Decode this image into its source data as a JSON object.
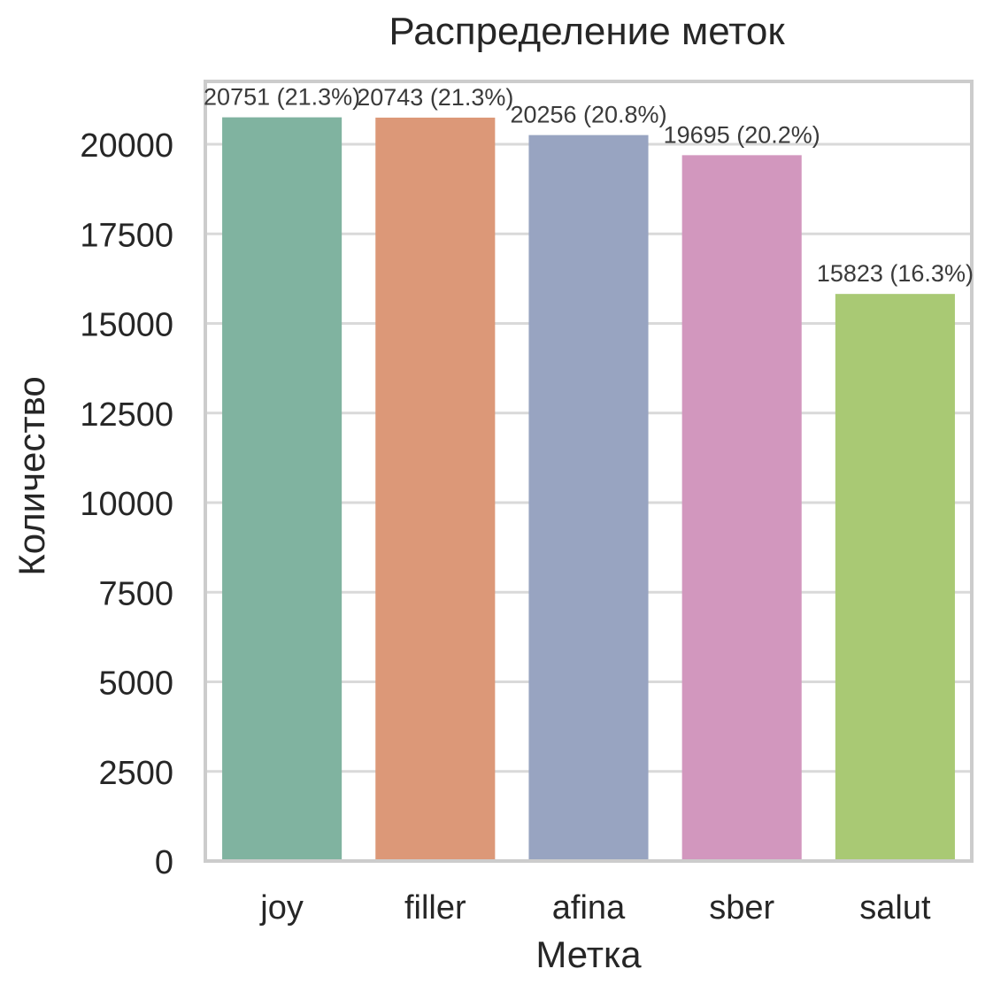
{
  "chart_data": {
    "type": "bar",
    "title": "Распределение меток",
    "xlabel": "Метка",
    "ylabel": "Количество",
    "categories": [
      "joy",
      "filler",
      "afina",
      "sber",
      "salut"
    ],
    "values": [
      20751,
      20743,
      20256,
      19695,
      15823
    ],
    "bar_labels": [
      "20751 (21.3%)",
      "20743 (21.3%)",
      "20256 (20.8%)",
      "19695 (20.2%)",
      "15823 (16.3%)"
    ],
    "colors": [
      "#80b3a0",
      "#dc9878",
      "#98a4c1",
      "#d297be",
      "#a9c974"
    ],
    "ylim": [
      0,
      21500
    ],
    "yticks": [
      0,
      2500,
      5000,
      7500,
      10000,
      12500,
      15000,
      17500,
      20000
    ],
    "grid": true,
    "legend": "none"
  }
}
